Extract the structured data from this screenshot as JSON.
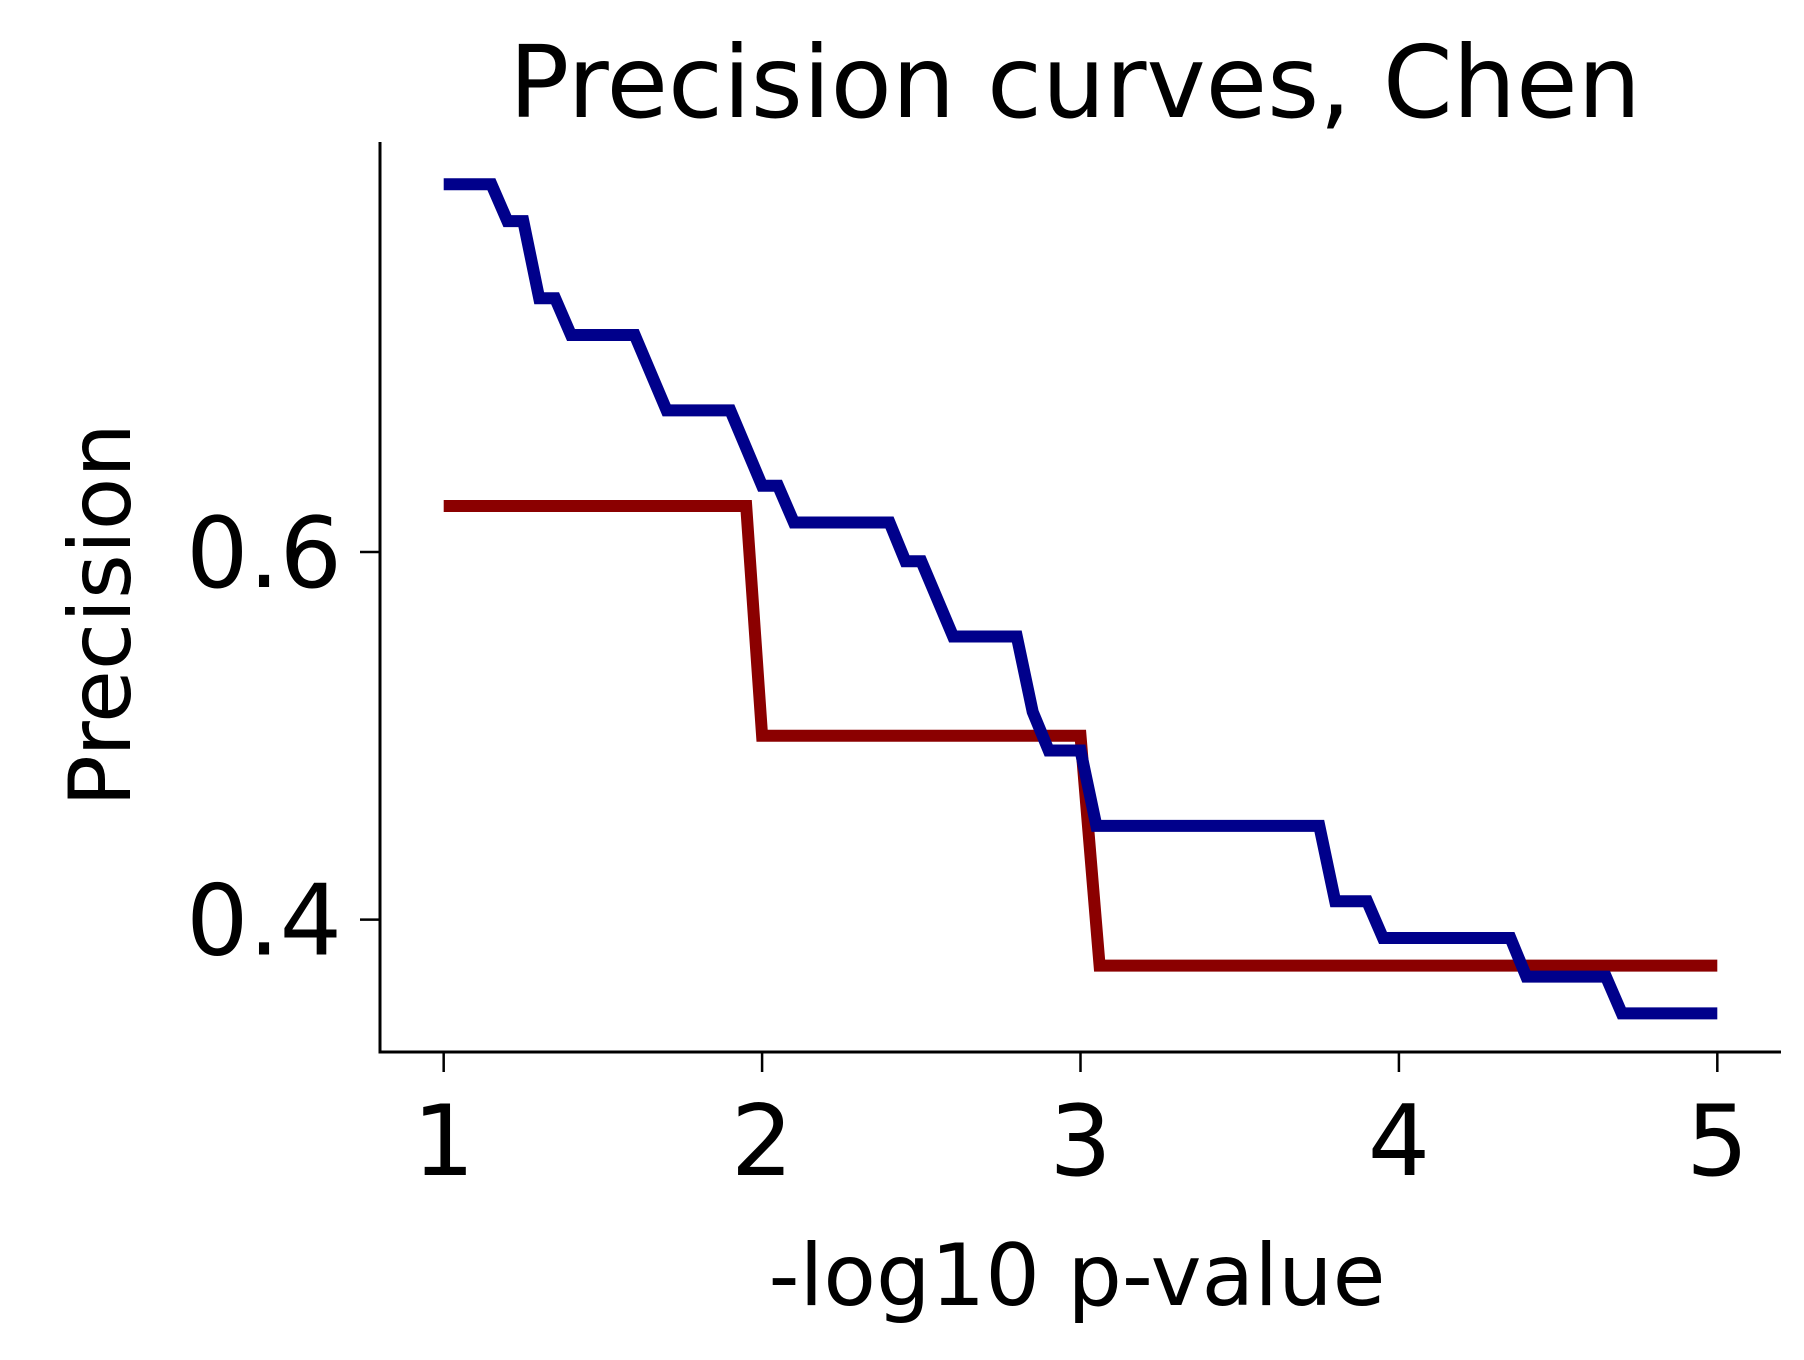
{
  "chart_data": {
    "type": "line",
    "title": "Precision curves, Chen",
    "xlabel": "-log10 p-value",
    "ylabel": "Precision",
    "xlim": [
      0.8,
      5.2
    ],
    "ylim": [
      0.328,
      0.823
    ],
    "x_ticks": [
      1,
      2,
      3,
      4,
      5
    ],
    "x_tick_labels": [
      "1",
      "2",
      "3",
      "4",
      "5"
    ],
    "y_ticks": [
      0.4,
      0.6
    ],
    "y_tick_labels": [
      "0.4",
      "0.6"
    ],
    "grid": false,
    "legend": "none",
    "series": [
      {
        "color": "#8b0000",
        "points": [
          [
            1.0,
            0.625
          ],
          [
            1.95,
            0.625
          ],
          [
            2.0,
            0.5
          ],
          [
            3.0,
            0.5
          ],
          [
            3.06,
            0.375
          ],
          [
            5.0,
            0.375
          ]
        ]
      },
      {
        "color": "#00008b",
        "points": [
          [
            1.0,
            0.8
          ],
          [
            1.15,
            0.8
          ],
          [
            1.2,
            0.78
          ],
          [
            1.25,
            0.78
          ],
          [
            1.3,
            0.738
          ],
          [
            1.35,
            0.738
          ],
          [
            1.4,
            0.718
          ],
          [
            1.6,
            0.718
          ],
          [
            1.7,
            0.677
          ],
          [
            1.9,
            0.677
          ],
          [
            2.0,
            0.636
          ],
          [
            2.05,
            0.636
          ],
          [
            2.1,
            0.616
          ],
          [
            2.4,
            0.616
          ],
          [
            2.45,
            0.595
          ],
          [
            2.5,
            0.595
          ],
          [
            2.6,
            0.554
          ],
          [
            2.8,
            0.554
          ],
          [
            2.85,
            0.513
          ],
          [
            2.9,
            0.492
          ],
          [
            3.0,
            0.492
          ],
          [
            3.05,
            0.451
          ],
          [
            3.75,
            0.451
          ],
          [
            3.8,
            0.41
          ],
          [
            3.9,
            0.41
          ],
          [
            3.95,
            0.39
          ],
          [
            4.35,
            0.39
          ],
          [
            4.4,
            0.369
          ],
          [
            4.65,
            0.369
          ],
          [
            4.7,
            0.349
          ],
          [
            5.0,
            0.349
          ]
        ]
      }
    ]
  }
}
